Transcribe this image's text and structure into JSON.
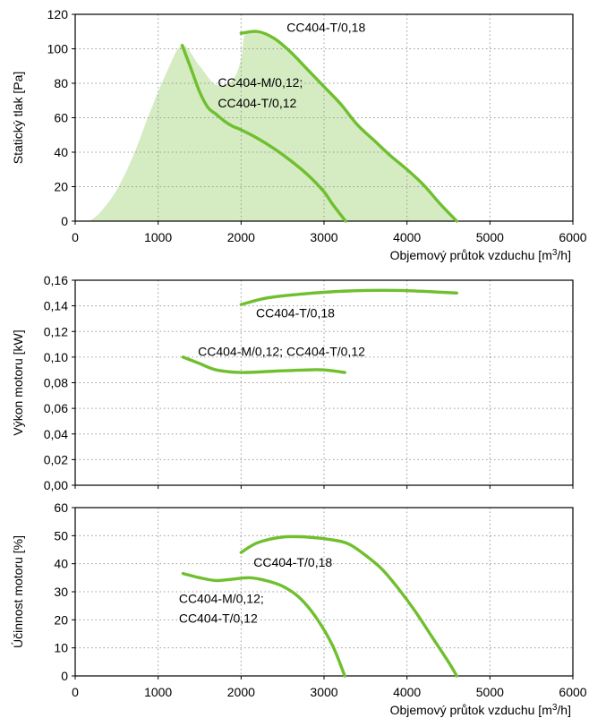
{
  "colors": {
    "curve": "#6fbf2e",
    "area": "#d5ebc2"
  },
  "chart_data": [
    {
      "type": "line",
      "ylabel": "Statický tlak [Pa]",
      "xlabel": "Objemový průtok vzduchu [m3/h]",
      "xlim": [
        0,
        6000
      ],
      "ylim": [
        0,
        120
      ],
      "xticks": [
        0,
        1000,
        2000,
        3000,
        4000,
        5000,
        6000
      ],
      "xtick_labels": [
        "0",
        "1000",
        "2000",
        "3000",
        "4000",
        "5000",
        "6000"
      ],
      "yticks": [
        0,
        20,
        40,
        60,
        80,
        100,
        120
      ],
      "ytick_labels": [
        "0",
        "20",
        "40",
        "60",
        "80",
        "100",
        "120"
      ],
      "grid": true,
      "area": [
        [
          170,
          0
        ],
        [
          300,
          5
        ],
        [
          500,
          18
        ],
        [
          700,
          38
        ],
        [
          900,
          63
        ],
        [
          1100,
          86
        ],
        [
          1290,
          102
        ],
        [
          1500,
          90
        ],
        [
          1700,
          79
        ],
        [
          1900,
          82
        ],
        [
          2000,
          94
        ],
        [
          2050,
          109
        ],
        [
          2200,
          110
        ],
        [
          2400,
          105
        ],
        [
          2600,
          97
        ],
        [
          2800,
          88
        ],
        [
          3000,
          78
        ],
        [
          3200,
          68
        ],
        [
          3400,
          56
        ],
        [
          3600,
          47
        ],
        [
          3800,
          38
        ],
        [
          4000,
          30
        ],
        [
          4200,
          21
        ],
        [
          4400,
          10
        ],
        [
          4600,
          0
        ]
      ],
      "series": [
        {
          "values": [
            [
              2000,
              109
            ],
            [
              2200,
              110
            ],
            [
              2400,
              106
            ],
            [
              2600,
              98
            ],
            [
              2800,
              88
            ],
            [
              3000,
              78
            ],
            [
              3200,
              68
            ],
            [
              3400,
              56
            ],
            [
              3600,
              47
            ],
            [
              3800,
              38
            ],
            [
              4000,
              30
            ],
            [
              4200,
              21
            ],
            [
              4400,
              10
            ],
            [
              4600,
              0
            ]
          ]
        },
        {
          "values": [
            [
              1290,
              102
            ],
            [
              1400,
              88
            ],
            [
              1500,
              75
            ],
            [
              1600,
              66
            ],
            [
              1700,
              62
            ],
            [
              1800,
              58
            ],
            [
              1900,
              55
            ],
            [
              2000,
              53
            ],
            [
              2200,
              48
            ],
            [
              2400,
              42
            ],
            [
              2600,
              35
            ],
            [
              2800,
              27
            ],
            [
              3000,
              17
            ],
            [
              3100,
              10
            ],
            [
              3260,
              0
            ]
          ]
        }
      ],
      "annotations": [
        {
          "text": "CC404-T/0,18",
          "x": 2550,
          "y": 110
        },
        {
          "text": "CC404-M/0,12;",
          "x": 1720,
          "y": 78
        },
        {
          "text": "CC404-T/0,12",
          "x": 1720,
          "y": 66
        }
      ]
    },
    {
      "type": "line",
      "ylabel": "Výkon motoru [kW]",
      "xlabel": "",
      "xlim": [
        0,
        6000
      ],
      "ylim": [
        0,
        0.16
      ],
      "xticks": [
        0,
        1000,
        2000,
        3000,
        4000,
        5000,
        6000
      ],
      "xtick_labels": [],
      "yticks": [
        0,
        0.02,
        0.04,
        0.06,
        0.08,
        0.1,
        0.12,
        0.14,
        0.16
      ],
      "ytick_labels": [
        "0,00",
        "0,02",
        "0,04",
        "0,06",
        "0,08",
        "0,10",
        "0,12",
        "0,14",
        "0,16"
      ],
      "grid": true,
      "series": [
        {
          "values": [
            [
              2000,
              0.141
            ],
            [
              2300,
              0.146
            ],
            [
              2700,
              0.149
            ],
            [
              3100,
              0.151
            ],
            [
              3500,
              0.152
            ],
            [
              3900,
              0.152
            ],
            [
              4300,
              0.151
            ],
            [
              4600,
              0.15
            ]
          ]
        },
        {
          "values": [
            [
              1300,
              0.1
            ],
            [
              1500,
              0.095
            ],
            [
              1700,
              0.09
            ],
            [
              2000,
              0.088
            ],
            [
              2400,
              0.089
            ],
            [
              2800,
              0.09
            ],
            [
              3000,
              0.09
            ],
            [
              3250,
              0.088
            ]
          ]
        }
      ],
      "annotations": [
        {
          "text": "CC404-T/0,18",
          "x": 2180,
          "y": 0.131
        },
        {
          "text": "CC404-M/0,12; CC404-T/0,12",
          "x": 1480,
          "y": 0.101
        }
      ]
    },
    {
      "type": "line",
      "ylabel": "Účinnost motoru [%]",
      "xlabel": "Objemový průtok vzduchu [m3/h]",
      "xlim": [
        0,
        6000
      ],
      "ylim": [
        0,
        60
      ],
      "xticks": [
        0,
        1000,
        2000,
        3000,
        4000,
        5000,
        6000
      ],
      "xtick_labels": [
        "0",
        "1000",
        "2000",
        "3000",
        "4000",
        "5000",
        "6000"
      ],
      "yticks": [
        0,
        10,
        20,
        30,
        40,
        50,
        60
      ],
      "ytick_labels": [
        "0",
        "10",
        "20",
        "30",
        "40",
        "50",
        "60"
      ],
      "grid": true,
      "series": [
        {
          "values": [
            [
              2000,
              44
            ],
            [
              2200,
              47.5
            ],
            [
              2500,
              49.5
            ],
            [
              2800,
              49.5
            ],
            [
              3100,
              48.5
            ],
            [
              3300,
              47
            ],
            [
              3500,
              43
            ],
            [
              3700,
              38
            ],
            [
              3900,
              31
            ],
            [
              4100,
              23
            ],
            [
              4300,
              14
            ],
            [
              4500,
              5
            ],
            [
              4600,
              0
            ]
          ]
        },
        {
          "values": [
            [
              1300,
              36.5
            ],
            [
              1500,
              35
            ],
            [
              1700,
              34
            ],
            [
              1900,
              34.5
            ],
            [
              2100,
              35
            ],
            [
              2300,
              34
            ],
            [
              2500,
              32
            ],
            [
              2700,
              28
            ],
            [
              2900,
              21
            ],
            [
              3100,
              11
            ],
            [
              3250,
              0
            ]
          ]
        }
      ],
      "annotations": [
        {
          "text": "CC404-T/0,18",
          "x": 2150,
          "y": 39
        },
        {
          "text": "CC404-M/0,12;",
          "x": 1250,
          "y": 26
        },
        {
          "text": "CC404-T/0,12",
          "x": 1250,
          "y": 19
        }
      ]
    }
  ]
}
